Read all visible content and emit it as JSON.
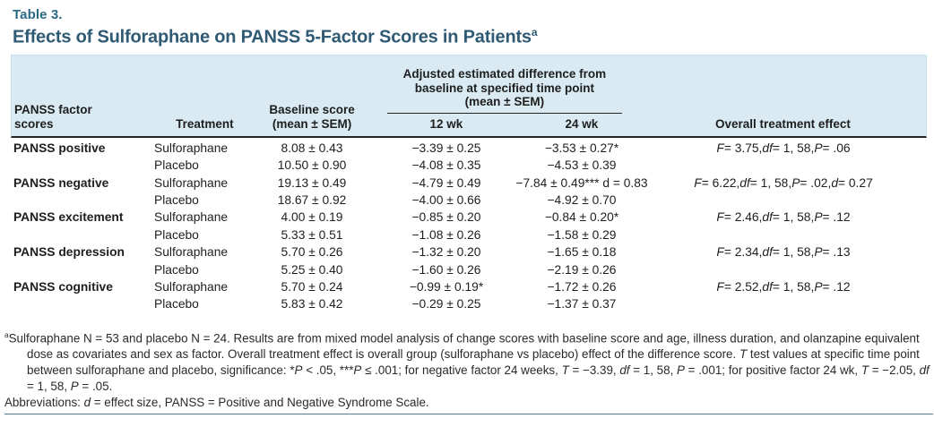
{
  "colors": {
    "header_bg": "#d9eaf3",
    "title_color": "#2f5a74",
    "label_color": "#2a6886",
    "rule_color": "#4f7e9d"
  },
  "table_label": "Table 3.",
  "table_title": "Effects of Sulforaphane on PANSS 5-Factor Scores in Patients^a^",
  "header": {
    "col_factor": "PANSS factor\nscores",
    "col_treatment": "Treatment",
    "col_baseline": "Baseline score\n(mean ± SEM)",
    "span_title": "Adjusted estimated difference from\nbaseline at specified time point\n(mean ± SEM)",
    "col_12wk": "12 wk",
    "col_24wk": "24 wk",
    "col_overall": "Overall treatment effect"
  },
  "rows": [
    {
      "factor": "PANSS positive",
      "treatment": "Sulforaphane",
      "baseline": "8.08 ± 0.43",
      "wk12": "−3.39 ± 0.25",
      "wk24": "−3.53 ± 0.27*",
      "overall": "_F_ = 3.75, _df_ = 1, 58, _P_ = .06"
    },
    {
      "factor": "",
      "treatment": "Placebo",
      "baseline": "10.50 ± 0.90",
      "wk12": "−4.08 ± 0.35",
      "wk24": "−4.53 ± 0.39",
      "overall": ""
    },
    {
      "factor": "PANSS negative",
      "treatment": "Sulforaphane",
      "baseline": "19.13 ± 0.49",
      "wk12": "−4.79 ± 0.49",
      "wk24": "−7.84 ± 0.49*** d = 0.83",
      "overall": "_F_ = 6.22, _df_ = 1, 58, _P_ = .02, _d_ = 0.27"
    },
    {
      "factor": "",
      "treatment": "Placebo",
      "baseline": "18.67 ± 0.92",
      "wk12": "−4.00 ± 0.66",
      "wk24": "−4.92 ± 0.70",
      "overall": ""
    },
    {
      "factor": "PANSS excitement",
      "treatment": "Sulforaphane",
      "baseline": "4.00 ± 0.19",
      "wk12": "−0.85 ± 0.20",
      "wk24": "−0.84 ± 0.20*",
      "overall": "_F_ = 2.46, _df_ = 1, 58, _P_ = .12"
    },
    {
      "factor": "",
      "treatment": "Placebo",
      "baseline": "5.33 ± 0.51",
      "wk12": "−1.08 ± 0.26",
      "wk24": "−1.58 ± 0.29",
      "overall": ""
    },
    {
      "factor": "PANSS depression",
      "treatment": "Sulforaphane",
      "baseline": "5.70 ± 0.26",
      "wk12": "−1.32 ± 0.20",
      "wk24": "−1.65 ± 0.18",
      "overall": "_F_ = 2.34, _df_ = 1, 58, _P_ = .13"
    },
    {
      "factor": "",
      "treatment": "Placebo",
      "baseline": "5.25 ± 0.40",
      "wk12": "−1.60 ± 0.26",
      "wk24": "−2.19 ± 0.26",
      "overall": ""
    },
    {
      "factor": "PANSS cognitive",
      "treatment": "Sulforaphane",
      "baseline": "5.70 ± 0.24",
      "wk12": "−0.99 ± 0.19*",
      "wk24": "−1.72 ± 0.26",
      "overall": "_F_ = 2.52, _df_ = 1, 58, _P_ = .12"
    },
    {
      "factor": "",
      "treatment": "Placebo",
      "baseline": "5.83 ± 0.42",
      "wk12": "−0.29 ± 0.25",
      "wk24": "−1.37 ± 0.37",
      "overall": ""
    }
  ],
  "footnotes": {
    "footnote_a": "^a^Sulforaphane N = 53 and placebo N = 24. Results are from mixed model analysis of change scores with baseline score and age, illness duration, and olanzapine equivalent dose as covariates and sex as factor. Overall treatment effect is overall group (sulforaphane vs placebo) effect of the difference score. _T_ test values at specific time point between sulforaphane and placebo, significance: *_P_ < .05, ***_P_ ≤ .001; for negative factor 24 weeks, _T_ = −3.39, _df_ = 1, 58, _P_ = .001; for positive factor 24 wk, _T_ = −2.05, _df_ = 1, 58, _P_ = .05.",
    "abbreviations": "Abbreviations: _d_ = effect size, PANSS = Positive and Negative Syndrome Scale."
  }
}
